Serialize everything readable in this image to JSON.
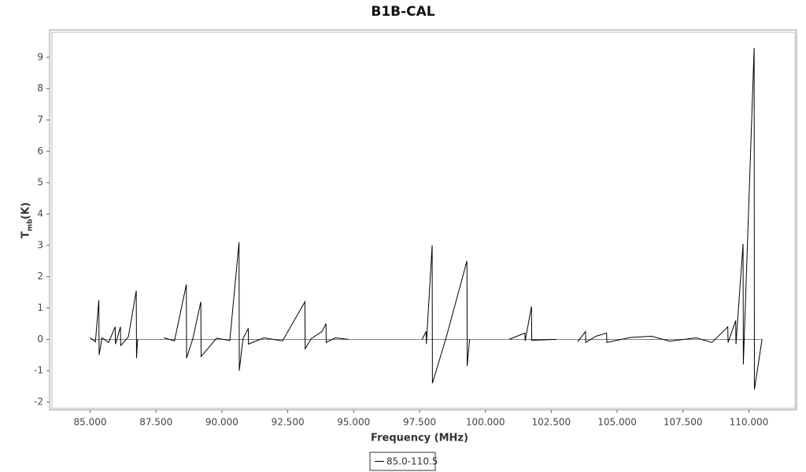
{
  "chart_data": {
    "type": "line",
    "title": "B1B-CAL",
    "xlabel": "Frequency (MHz)",
    "ylabel": [
      "T",
      "mb",
      "(K)"
    ],
    "x": [
      85.0,
      85.2,
      85.33,
      85.34,
      85.45,
      85.7,
      85.95,
      85.96,
      86.15,
      86.16,
      86.45,
      86.75,
      86.76,
      86.8,
      87.3,
      87.8,
      88.2,
      88.65,
      88.66,
      88.9,
      89.2,
      89.21,
      89.8,
      90.3,
      90.65,
      90.66,
      90.8,
      91.0,
      91.01,
      91.6,
      92.3,
      93.15,
      93.16,
      93.4,
      93.8,
      93.95,
      93.96,
      94.3,
      94.8,
      96.2,
      97.6,
      97.75,
      97.76,
      97.98,
      97.99,
      98.5,
      99.3,
      99.31,
      99.4,
      100.1,
      100.9,
      101.5,
      101.51,
      101.75,
      101.76,
      102.7,
      103.1,
      103.5,
      103.8,
      103.81,
      104.2,
      104.6,
      104.61,
      105.5,
      106.3,
      107.0,
      108.0,
      108.6,
      109.2,
      109.21,
      109.5,
      109.51,
      109.78,
      109.79,
      110.2,
      110.21,
      110.5
    ],
    "series": [
      {
        "name": "85.0-110.5",
        "color": "#000000",
        "values": [
          0.05,
          -0.08,
          1.25,
          -0.5,
          0.05,
          -0.1,
          0.4,
          -0.15,
          0.4,
          -0.2,
          0.08,
          1.55,
          -0.6,
          0.0,
          null,
          0.05,
          -0.05,
          1.75,
          -0.6,
          0.03,
          1.2,
          -0.55,
          0.04,
          -0.04,
          3.1,
          -1.0,
          0.02,
          0.35,
          -0.15,
          0.05,
          -0.05,
          1.2,
          -0.3,
          0.03,
          0.25,
          0.5,
          -0.1,
          0.05,
          0.0,
          null,
          0.0,
          0.25,
          -0.15,
          3.0,
          -1.4,
          0.02,
          2.5,
          -0.85,
          0.0,
          null,
          0.0,
          0.2,
          -0.05,
          1.05,
          -0.03,
          0.0,
          null,
          -0.08,
          0.25,
          -0.1,
          0.1,
          0.2,
          -0.1,
          0.06,
          0.1,
          -0.06,
          0.05,
          -0.1,
          0.4,
          -0.1,
          0.6,
          -0.15,
          3.05,
          -0.8,
          9.3,
          -1.6,
          0.0
        ]
      }
    ],
    "xlim": [
      83.55,
      111.75
    ],
    "xticks": [
      {
        "value": 85,
        "label": "85.000"
      },
      {
        "value": 87.5,
        "label": "87.500"
      },
      {
        "value": 90,
        "label": "90.000"
      },
      {
        "value": 92.5,
        "label": "92.500"
      },
      {
        "value": 95,
        "label": "95.000"
      },
      {
        "value": 97.5,
        "label": "97.500"
      },
      {
        "value": 100,
        "label": "100.000"
      },
      {
        "value": 102.5,
        "label": "102.500"
      },
      {
        "value": 105,
        "label": "105.000"
      },
      {
        "value": 107.5,
        "label": "107.500"
      },
      {
        "value": 110,
        "label": "110.000"
      }
    ],
    "ylim": [
      -2.2,
      9.8
    ],
    "yticks": [
      -2,
      -1,
      0,
      1,
      2,
      3,
      4,
      5,
      6,
      7,
      8,
      9
    ],
    "grid": false
  }
}
